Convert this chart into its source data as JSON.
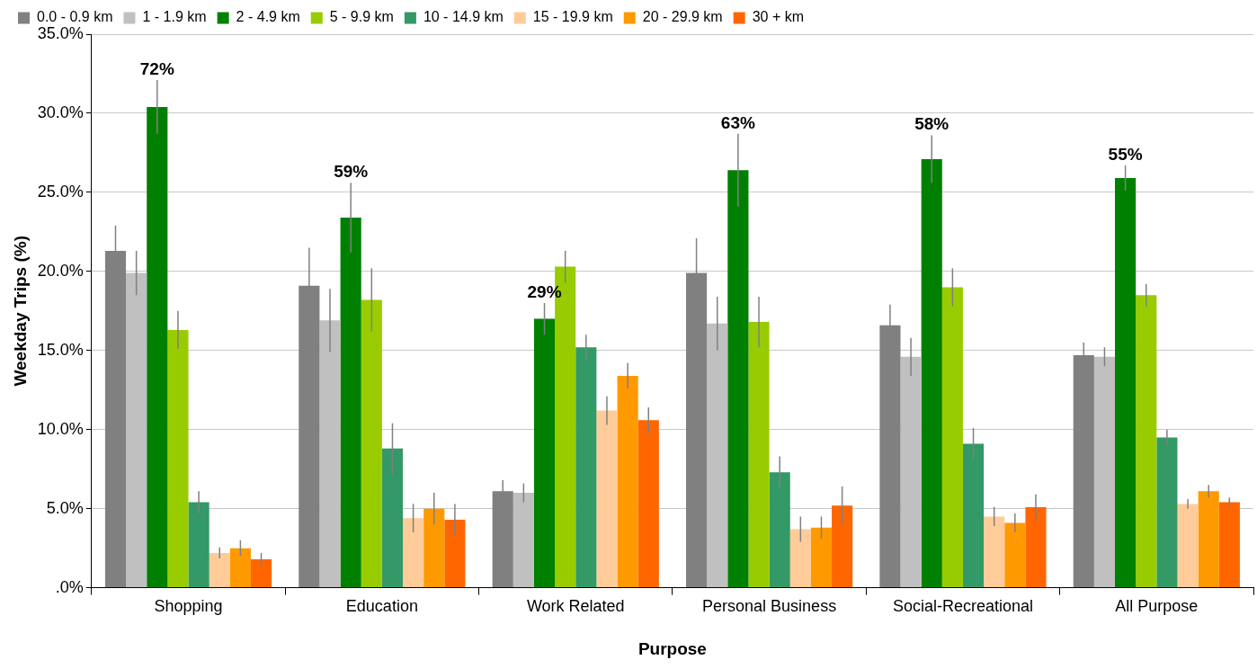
{
  "chart_data": {
    "type": "bar",
    "xlabel": "Purpose",
    "ylabel": "Weekday Trips (%)",
    "categories": [
      "Shopping",
      "Education",
      "Work Related",
      "Personal Business",
      "Social-Recreational",
      "All Purpose"
    ],
    "series": [
      {
        "name": "0.0 - 0.9 km",
        "color": "#808080",
        "values": [
          21.3,
          19.1,
          6.1,
          19.9,
          16.6,
          14.7
        ],
        "errors": [
          1.6,
          2.4,
          0.7,
          2.2,
          1.3,
          0.8
        ]
      },
      {
        "name": "1 - 1.9 km",
        "color": "#c0c0c0",
        "values": [
          19.9,
          16.9,
          6.0,
          16.7,
          14.6,
          14.6
        ],
        "errors": [
          1.4,
          2.0,
          0.6,
          1.7,
          1.2,
          0.6
        ]
      },
      {
        "name": "2 - 4.9 km",
        "color": "#008000",
        "values": [
          30.4,
          23.4,
          17.0,
          26.4,
          27.1,
          25.9
        ],
        "errors": [
          1.7,
          2.2,
          1.0,
          2.3,
          1.5,
          0.8
        ]
      },
      {
        "name": "5 - 9.9 km",
        "color": "#99cc00",
        "values": [
          16.3,
          18.2,
          20.3,
          16.8,
          19.0,
          18.5
        ],
        "errors": [
          1.2,
          2.0,
          1.0,
          1.6,
          1.2,
          0.7
        ]
      },
      {
        "name": "10 - 14.9 km",
        "color": "#339966",
        "values": [
          5.4,
          8.8,
          15.2,
          7.3,
          9.1,
          9.5
        ],
        "errors": [
          0.7,
          1.6,
          0.8,
          1.0,
          1.0,
          0.5
        ]
      },
      {
        "name": "15 - 19.9 km",
        "color": "#ffcc99",
        "values": [
          2.2,
          4.4,
          11.2,
          3.7,
          4.5,
          5.3
        ],
        "errors": [
          0.35,
          0.9,
          0.9,
          0.8,
          0.6,
          0.3
        ]
      },
      {
        "name": "20 - 29.9 km",
        "color": "#ff9900",
        "values": [
          2.5,
          5.0,
          13.4,
          3.8,
          4.1,
          6.1
        ],
        "errors": [
          0.5,
          1.0,
          0.8,
          0.7,
          0.6,
          0.4
        ]
      },
      {
        "name": "30 + km",
        "color": "#ff6600",
        "values": [
          1.8,
          4.3,
          10.6,
          5.2,
          5.1,
          5.4
        ],
        "errors": [
          0.4,
          1.0,
          0.8,
          1.2,
          0.8,
          0.3
        ]
      }
    ],
    "ylim": [
      0,
      35
    ],
    "yticks": [
      {
        "value": 0,
        "label": ".0%"
      },
      {
        "value": 5,
        "label": "5.0%"
      },
      {
        "value": 10,
        "label": "10.0%"
      },
      {
        "value": 15,
        "label": "15.0%"
      },
      {
        "value": 20,
        "label": "20.0%"
      },
      {
        "value": 25,
        "label": "25.0%"
      },
      {
        "value": 30,
        "label": "30.0%"
      },
      {
        "value": 35,
        "label": "35.0%"
      }
    ],
    "grid": "y",
    "legend": "top left",
    "annotations": [
      "72%",
      "59%",
      "29%",
      "63%",
      "58%",
      "55%"
    ]
  }
}
